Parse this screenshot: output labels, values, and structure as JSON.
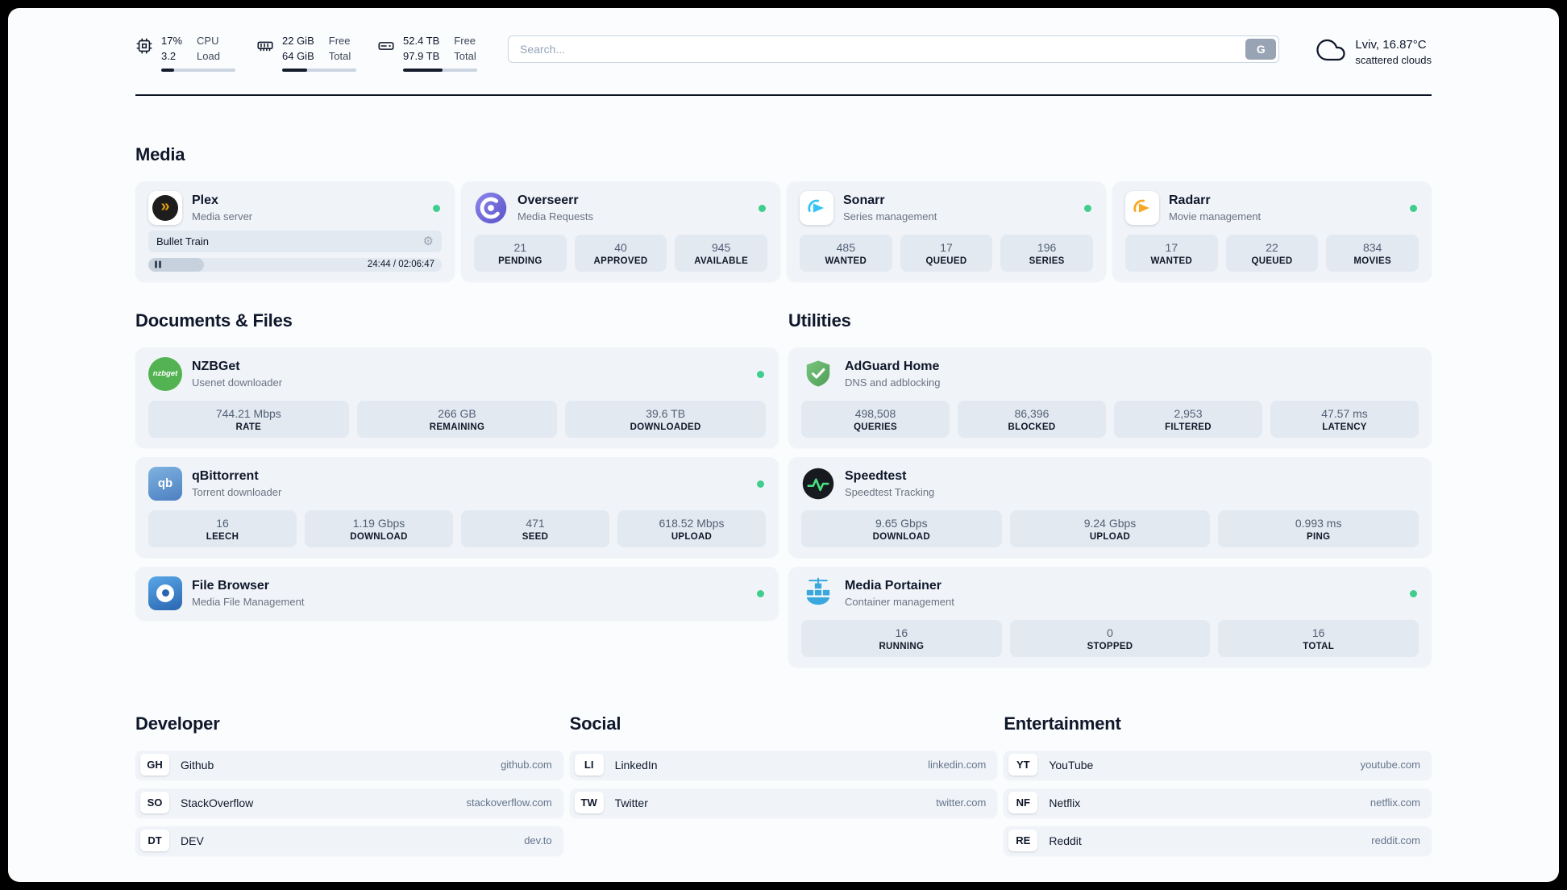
{
  "icons": {
    "settings_glyph": "⚙"
  },
  "colors": {
    "status_online": "#3fce8e",
    "plex_accent": "#e5a00d",
    "overseerr_purple": "#6c63d2",
    "sonarr_blue": "#35c5f4",
    "radarr_orange": "#f7a823",
    "nzbget_green": "#53b251",
    "qbittorrent_blue": "#4c7fc0",
    "filebrowser_blue": "#2a66b0",
    "adguard_green": "#67b56c",
    "speedtest_accent": "#4ade80",
    "portainer_blue": "#3aa8dd",
    "progress_fill": "#141c2b"
  },
  "topbar": {
    "cpu": {
      "value_line1": "17%",
      "value_line2": "3.2",
      "label_line1": "CPU",
      "label_line2": "Load",
      "progress_percent": 17
    },
    "memory": {
      "value_line1": "22 GiB",
      "value_line2": "64 GiB",
      "label_line1": "Free",
      "label_line2": "Total",
      "progress_percent": 34
    },
    "disk": {
      "value_line1": "52.4 TB",
      "value_line2": "97.9 TB",
      "label_line1": "Free",
      "label_line2": "Total",
      "progress_percent": 53
    },
    "search": {
      "placeholder": "Search...",
      "button_label": "G"
    },
    "weather": {
      "location": "Lviv, 16.87°C",
      "condition": "scattered clouds"
    }
  },
  "media": {
    "title": "Media",
    "plex": {
      "name": "Plex",
      "description": "Media server",
      "icon_text": "»",
      "now_playing": "Bullet Train",
      "time": "24:44 / 02:06:47",
      "progress_percent": 19
    },
    "overseerr": {
      "name": "Overseerr",
      "description": "Media Requests",
      "stats": [
        {
          "value": "21",
          "label": "PENDING"
        },
        {
          "value": "40",
          "label": "APPROVED"
        },
        {
          "value": "945",
          "label": "AVAILABLE"
        }
      ]
    },
    "sonarr": {
      "name": "Sonarr",
      "description": "Series management",
      "stats": [
        {
          "value": "485",
          "label": "WANTED"
        },
        {
          "value": "17",
          "label": "QUEUED"
        },
        {
          "value": "196",
          "label": "SERIES"
        }
      ]
    },
    "radarr": {
      "name": "Radarr",
      "description": "Movie management",
      "stats": [
        {
          "value": "17",
          "label": "WANTED"
        },
        {
          "value": "22",
          "label": "QUEUED"
        },
        {
          "value": "834",
          "label": "MOVIES"
        }
      ]
    }
  },
  "documents": {
    "title": "Documents & Files",
    "nzbget": {
      "name": "NZBGet",
      "description": "Usenet downloader",
      "icon_text": "nzbget",
      "stats": [
        {
          "value": "744.21 Mbps",
          "label": "RATE"
        },
        {
          "value": "266 GB",
          "label": "REMAINING"
        },
        {
          "value": "39.6 TB",
          "label": "DOWNLOADED"
        }
      ]
    },
    "qbittorrent": {
      "name": "qBittorrent",
      "description": "Torrent downloader",
      "icon_text": "qb",
      "stats": [
        {
          "value": "16",
          "label": "LEECH"
        },
        {
          "value": "1.19 Gbps",
          "label": "DOWNLOAD"
        },
        {
          "value": "471",
          "label": "SEED"
        },
        {
          "value": "618.52 Mbps",
          "label": "UPLOAD"
        }
      ]
    },
    "filebrowser": {
      "name": "File Browser",
      "description": "Media File Management"
    }
  },
  "utilities": {
    "title": "Utilities",
    "adguard": {
      "name": "AdGuard Home",
      "description": "DNS and adblocking",
      "stats": [
        {
          "value": "498,508",
          "label": "QUERIES"
        },
        {
          "value": "86,396",
          "label": "BLOCKED"
        },
        {
          "value": "2,953",
          "label": "FILTERED"
        },
        {
          "value": "47.57 ms",
          "label": "LATENCY"
        }
      ]
    },
    "speedtest": {
      "name": "Speedtest",
      "description": "Speedtest Tracking",
      "stats": [
        {
          "value": "9.65 Gbps",
          "label": "DOWNLOAD"
        },
        {
          "value": "9.24 Gbps",
          "label": "UPLOAD"
        },
        {
          "value": "0.993 ms",
          "label": "PING"
        }
      ]
    },
    "portainer": {
      "name": "Media Portainer",
      "description": "Container management",
      "stats": [
        {
          "value": "16",
          "label": "RUNNING"
        },
        {
          "value": "0",
          "label": "STOPPED"
        },
        {
          "value": "16",
          "label": "TOTAL"
        }
      ]
    }
  },
  "bookmarks": {
    "developer": {
      "title": "Developer",
      "items": [
        {
          "abbr": "GH",
          "name": "Github",
          "url": "github.com"
        },
        {
          "abbr": "SO",
          "name": "StackOverflow",
          "url": "stackoverflow.com"
        },
        {
          "abbr": "DT",
          "name": "DEV",
          "url": "dev.to"
        }
      ]
    },
    "social": {
      "title": "Social",
      "items": [
        {
          "abbr": "LI",
          "name": "LinkedIn",
          "url": "linkedin.com"
        },
        {
          "abbr": "TW",
          "name": "Twitter",
          "url": "twitter.com"
        }
      ]
    },
    "entertainment": {
      "title": "Entertainment",
      "items": [
        {
          "abbr": "YT",
          "name": "YouTube",
          "url": "youtube.com"
        },
        {
          "abbr": "NF",
          "name": "Netflix",
          "url": "netflix.com"
        },
        {
          "abbr": "RE",
          "name": "Reddit",
          "url": "reddit.com"
        }
      ]
    }
  }
}
